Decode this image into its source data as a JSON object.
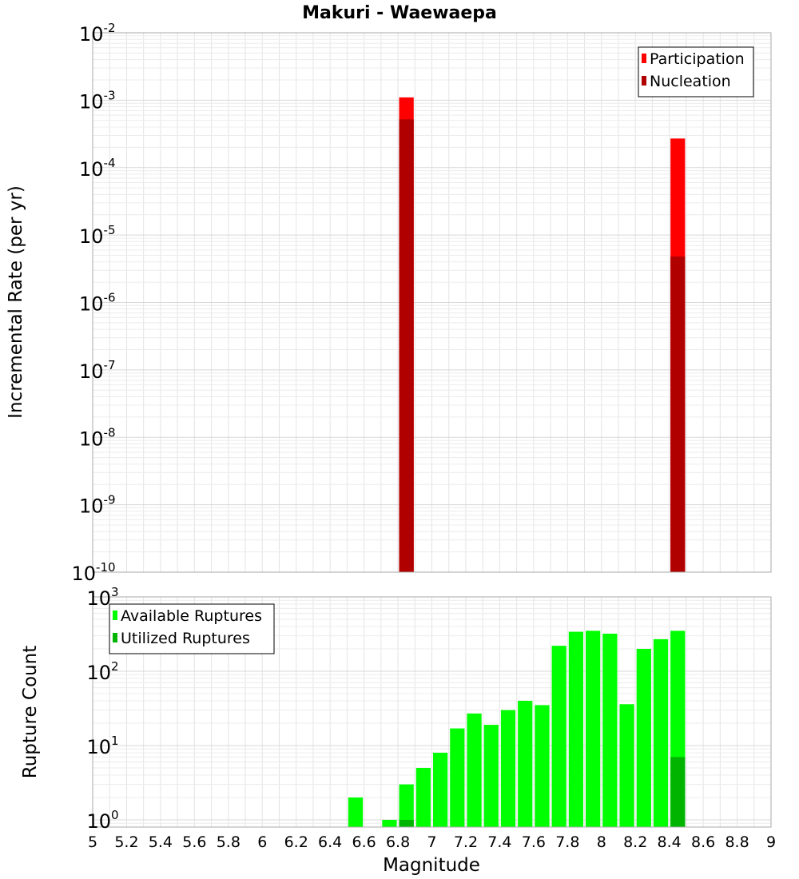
{
  "chart_data": [
    {
      "type": "bar",
      "title": "Makuri - Waewaepa",
      "xlabel": "Magnitude",
      "ylabel": "Incremental Rate (per yr)",
      "yscale": "log",
      "xlim": [
        5,
        9
      ],
      "ylim": [
        1e-10,
        0.01
      ],
      "bin_width": 0.1,
      "y_ticks": [
        {
          "base": "10",
          "exp": "-2"
        },
        {
          "base": "10",
          "exp": "-3"
        },
        {
          "base": "10",
          "exp": "-4"
        },
        {
          "base": "10",
          "exp": "-5"
        },
        {
          "base": "10",
          "exp": "-6"
        },
        {
          "base": "10",
          "exp": "-7"
        },
        {
          "base": "10",
          "exp": "-8"
        },
        {
          "base": "10",
          "exp": "-9"
        },
        {
          "base": "10",
          "exp": "-10"
        }
      ],
      "legend_position": "top-right",
      "grid": true,
      "series": [
        {
          "name": "Participation",
          "color": "#ff0000",
          "x": [
            6.85,
            8.45
          ],
          "values": [
            0.0011,
            0.00027
          ]
        },
        {
          "name": "Nucleation",
          "color": "#b00000",
          "x": [
            6.85,
            8.45
          ],
          "values": [
            0.00052,
            4.8e-06
          ]
        }
      ]
    },
    {
      "type": "bar",
      "xlabel": "Magnitude",
      "ylabel": "Rupture Count",
      "yscale": "log",
      "xlim": [
        5,
        9
      ],
      "ylim": [
        0.8,
        1000
      ],
      "bin_width": 0.1,
      "y_ticks": [
        {
          "base": "10",
          "exp": "3"
        },
        {
          "base": "10",
          "exp": "2"
        },
        {
          "base": "10",
          "exp": "1"
        },
        {
          "base": "10",
          "exp": "0"
        }
      ],
      "x_tick_labels": [
        "5",
        "5.2",
        "5.4",
        "5.6",
        "5.8",
        "6",
        "6.2",
        "6.4",
        "6.6",
        "6.8",
        "7",
        "7.2",
        "7.4",
        "7.6",
        "7.8",
        "8",
        "8.2",
        "8.4",
        "8.6",
        "8.8",
        "9"
      ],
      "legend_position": "top-left",
      "grid": true,
      "series": [
        {
          "name": "Available Ruptures",
          "color": "#00ff00",
          "x": [
            6.55,
            6.75,
            6.85,
            6.95,
            7.05,
            7.15,
            7.25,
            7.35,
            7.45,
            7.55,
            7.65,
            7.75,
            7.85,
            7.95,
            8.05,
            8.15,
            8.25,
            8.35,
            8.45
          ],
          "values": [
            2,
            1,
            3,
            5,
            8,
            17,
            27,
            19,
            30,
            40,
            35,
            220,
            340,
            350,
            320,
            36,
            200,
            270,
            350
          ]
        },
        {
          "name": "Utilized Ruptures",
          "color": "#00b400",
          "x": [
            6.85,
            8.45
          ],
          "values": [
            1,
            7
          ]
        }
      ]
    }
  ]
}
